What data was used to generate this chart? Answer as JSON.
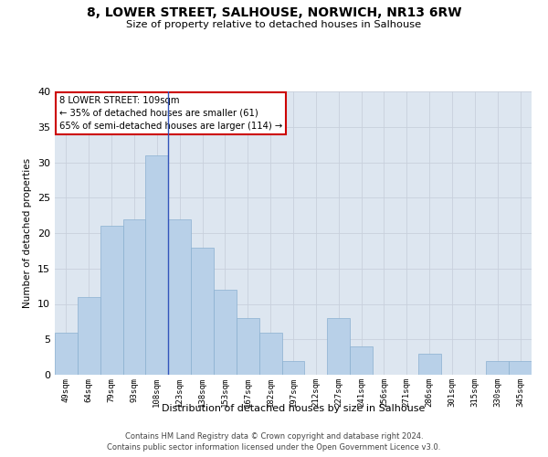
{
  "title": "8, LOWER STREET, SALHOUSE, NORWICH, NR13 6RW",
  "subtitle": "Size of property relative to detached houses in Salhouse",
  "xlabel": "Distribution of detached houses by size in Salhouse",
  "ylabel": "Number of detached properties",
  "categories": [
    "49sqm",
    "64sqm",
    "79sqm",
    "93sqm",
    "108sqm",
    "123sqm",
    "138sqm",
    "153sqm",
    "167sqm",
    "182sqm",
    "197sqm",
    "212sqm",
    "227sqm",
    "241sqm",
    "256sqm",
    "271sqm",
    "286sqm",
    "301sqm",
    "315sqm",
    "330sqm",
    "345sqm"
  ],
  "values": [
    6,
    11,
    21,
    22,
    31,
    22,
    18,
    12,
    8,
    6,
    2,
    0,
    8,
    4,
    0,
    0,
    3,
    0,
    0,
    2,
    2
  ],
  "bar_color": "#b8d0e8",
  "bar_edge_color": "#8ab0d0",
  "vline_x_index": 4,
  "vline_color": "#3355bb",
  "annotation_box_line1": "8 LOWER STREET: 109sqm",
  "annotation_box_line2": "← 35% of detached houses are smaller (61)",
  "annotation_box_line3": "65% of semi-detached houses are larger (114) →",
  "annotation_box_color": "#cc0000",
  "annotation_bg": "#ffffff",
  "ylim": [
    0,
    40
  ],
  "yticks": [
    0,
    5,
    10,
    15,
    20,
    25,
    30,
    35,
    40
  ],
  "grid_color": "#c8d0dc",
  "bg_color": "#dde6f0",
  "footer_line1": "Contains HM Land Registry data © Crown copyright and database right 2024.",
  "footer_line2": "Contains public sector information licensed under the Open Government Licence v3.0."
}
